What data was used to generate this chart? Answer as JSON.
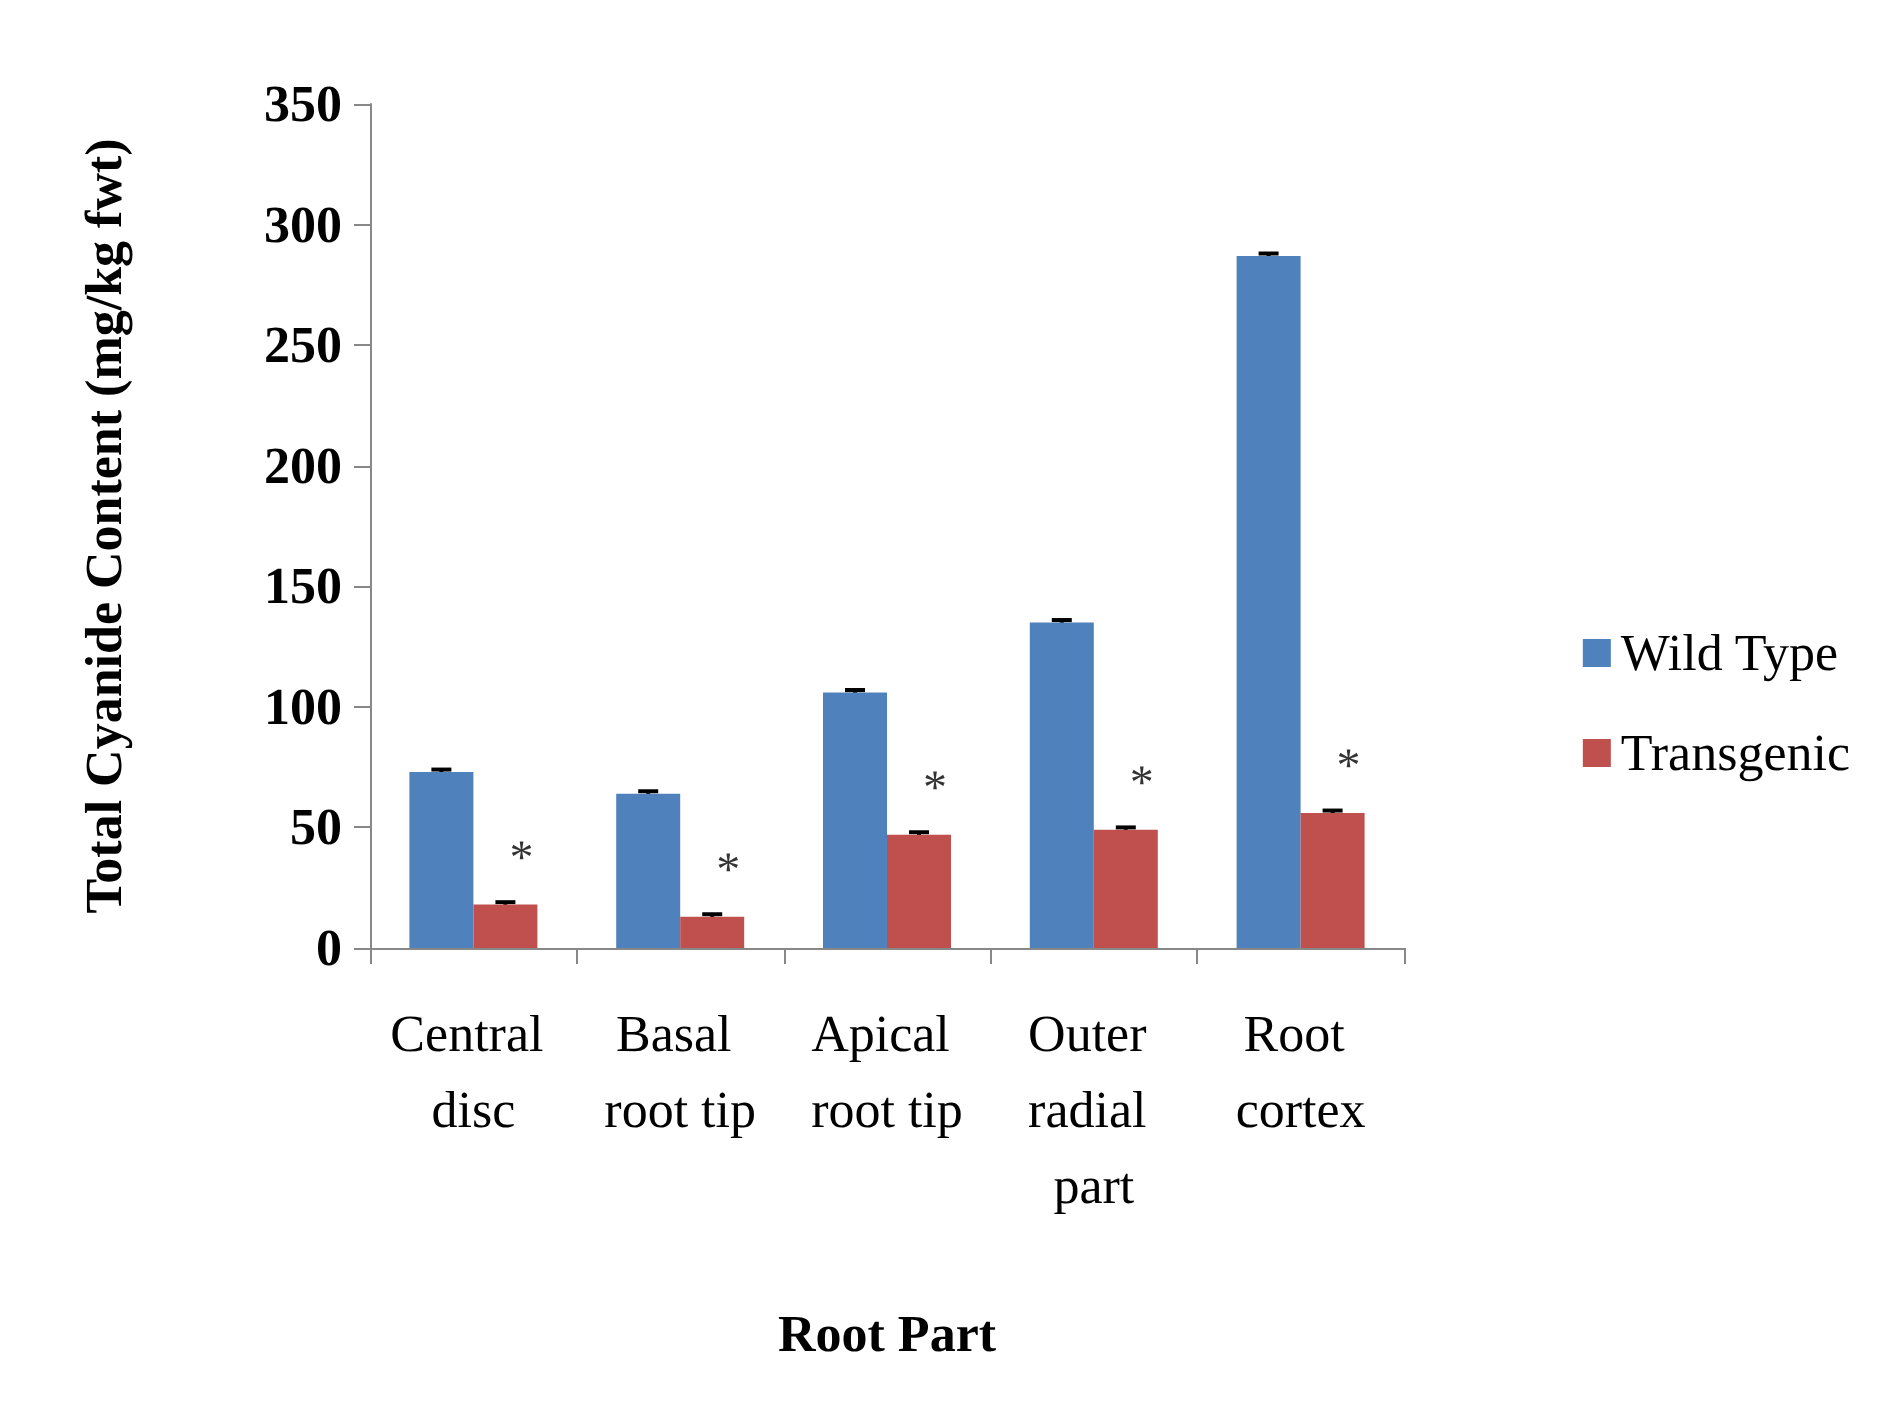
{
  "chart_data": {
    "type": "bar",
    "xlabel": "Root Part",
    "ylabel": "Total Cyanide Content (mg/kg fwt)",
    "categories": [
      "Central disc",
      "Basal root tip",
      "Apical root tip",
      "Outer radial part",
      "Root cortex"
    ],
    "series": [
      {
        "name": "Wild Type",
        "color": "#4f81bd",
        "values": [
          73,
          64,
          106,
          135,
          287
        ],
        "errors": [
          1,
          1,
          1,
          1,
          1
        ]
      },
      {
        "name": "Transgenic",
        "color": "#c0504d",
        "values": [
          18,
          13,
          47,
          49,
          56
        ],
        "errors": [
          1,
          1,
          1,
          1,
          1
        ]
      }
    ],
    "ylim": [
      0,
      350
    ],
    "yticks": [
      0,
      50,
      100,
      150,
      200,
      250,
      300,
      350
    ],
    "grid": false,
    "legend": "right",
    "annotations": [
      {
        "text": "*",
        "x": "Central disc",
        "y": 18
      },
      {
        "text": "*",
        "x": "Basal root tip",
        "y": 13
      },
      {
        "text": "*",
        "x": "Apical root tip",
        "y": 47
      },
      {
        "text": "*",
        "x": "Outer radial part",
        "y": 49
      },
      {
        "text": "*",
        "x": "Root cortex",
        "y": 56
      }
    ]
  }
}
